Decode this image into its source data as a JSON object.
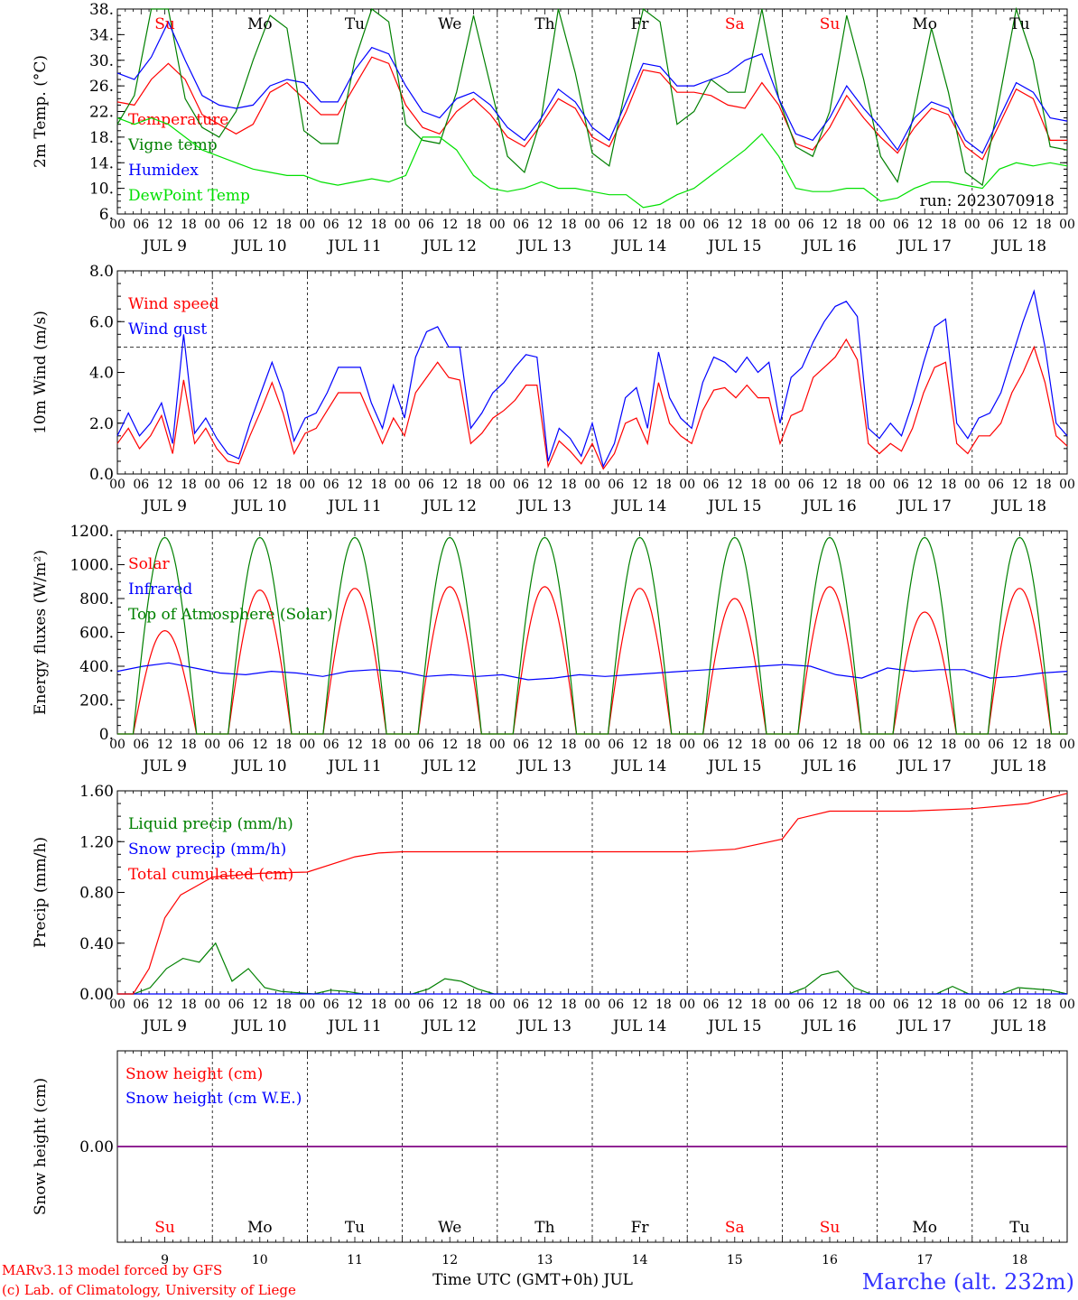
{
  "run_label": "run: 2023070918",
  "footer": {
    "model": "MARv3.13 model forced by GFS",
    "lab": "(c) Lab. of Climatology, University of Liege",
    "xlabel": "Time UTC (GMT+0h) JUL",
    "station": "Marche (alt. 232m)"
  },
  "colors": {
    "red": "#ff0000",
    "darkgreen": "#008000",
    "blue": "#0000ff",
    "lightgreen": "#00e000",
    "purple": "#800080"
  },
  "chart_data": [
    {
      "type": "line",
      "ylabel": "2m Temp. (°C)",
      "ylim": [
        6,
        38
      ],
      "ytick_labels": [
        "6.",
        "10.",
        "14.",
        "18.",
        "22.",
        "26.",
        "30.",
        "34.",
        "38."
      ],
      "xlim_hours": [
        0,
        240
      ],
      "x_hour_labels": [
        "00",
        "06",
        "12",
        "18"
      ],
      "day_labels": [
        "JUL 9",
        "JUL 10",
        "JUL 11",
        "JUL 12",
        "JUL 13",
        "JUL 14",
        "JUL 15",
        "JUL 16",
        "JUL 17",
        "JUL 18"
      ],
      "weekdays": [
        "Su",
        "Mo",
        "Tu",
        "We",
        "Th",
        "Fr",
        "Sa",
        "Su",
        "Mo",
        "Tu"
      ],
      "weekend_flags": [
        true,
        false,
        false,
        false,
        false,
        false,
        true,
        true,
        false,
        false
      ],
      "legend_position": "left",
      "series": [
        {
          "name": "Temperature",
          "color": "#ff0000",
          "values": [
            23.5,
            23,
            27,
            29.5,
            27,
            21.5,
            20,
            18.5,
            20,
            25,
            26.5,
            24,
            21.5,
            21.5,
            26,
            30.5,
            29.5,
            23,
            19.5,
            18.5,
            22,
            24,
            21.5,
            18,
            16.5,
            20,
            24,
            22.5,
            18,
            16.5,
            22,
            28.5,
            28,
            25,
            25,
            24.5,
            23,
            22.5,
            26.5,
            23,
            17,
            16,
            19.5,
            24.5,
            21,
            18,
            15.5,
            19.5,
            22.5,
            21.5,
            16.5,
            14.5,
            20,
            25.5,
            24,
            17.5,
            17.5
          ]
        },
        {
          "name": "Vigne temp",
          "color": "#008000",
          "values": [
            20,
            24.5,
            38,
            38,
            24,
            19.5,
            18,
            22,
            30,
            37,
            35,
            19,
            17,
            17,
            30,
            38,
            36,
            20,
            17.5,
            17,
            25,
            37,
            26,
            15,
            12.5,
            21,
            38,
            28,
            15.5,
            13.5,
            26,
            38,
            36,
            20,
            22,
            27,
            25,
            25,
            38,
            24,
            16.5,
            15,
            22,
            37,
            27,
            15,
            11,
            22,
            35,
            25,
            12.5,
            10.5,
            24,
            38,
            30,
            16.5,
            16
          ]
        },
        {
          "name": "Humidex",
          "color": "#0000ff",
          "values": [
            28,
            27,
            30.5,
            36,
            30,
            24.5,
            23,
            22.5,
            23,
            26,
            27,
            26.5,
            23.5,
            23.5,
            28.5,
            32,
            31,
            26,
            22,
            21,
            24,
            25,
            23,
            19.5,
            17.5,
            21,
            25.5,
            23.5,
            19.5,
            17.5,
            23.5,
            29.5,
            29,
            26,
            26,
            27,
            28,
            30,
            31,
            24,
            18.5,
            17.5,
            21,
            26,
            22.5,
            19.5,
            16,
            21,
            23.5,
            22.5,
            17.5,
            15.5,
            21,
            26.5,
            25,
            21,
            20.5
          ]
        },
        {
          "name": "DewPoint Temp",
          "color": "#00e000",
          "values": [
            21,
            20,
            21,
            20,
            18,
            16,
            15,
            14,
            13,
            12.5,
            12,
            12,
            11,
            10.5,
            11,
            11.5,
            11,
            12,
            18,
            18,
            16,
            12,
            10,
            9.5,
            10,
            11,
            10,
            10,
            9.5,
            9,
            9,
            7,
            7.5,
            9,
            10,
            12,
            14,
            16,
            18.5,
            15,
            10,
            9.5,
            9.5,
            10,
            10,
            8,
            8.5,
            10,
            11,
            11,
            10.5,
            10,
            13,
            14,
            13.5,
            14,
            13.5
          ]
        }
      ],
      "x_step_hours": 4.2857
    },
    {
      "type": "line",
      "ylabel": "10m Wind (m/s)",
      "ylim": [
        0,
        8
      ],
      "ytick_labels": [
        "0.0",
        "2.0",
        "4.0",
        "6.0",
        "8.0"
      ],
      "reference_line": 5,
      "legend_position": "left",
      "series": [
        {
          "name": "Wind speed",
          "color": "#ff0000",
          "values": [
            1.2,
            1.8,
            1.0,
            1.5,
            2.3,
            0.8,
            3.7,
            1.2,
            1.8,
            1.0,
            0.5,
            0.4,
            1.5,
            2.5,
            3.6,
            2.4,
            0.8,
            1.6,
            1.8,
            2.5,
            3.2,
            3.2,
            3.2,
            2.2,
            1.2,
            2.2,
            1.5,
            3.2,
            3.8,
            4.4,
            3.8,
            3.7,
            1.2,
            1.6,
            2.2,
            2.5,
            2.9,
            3.5,
            3.5,
            0.3,
            1.3,
            0.9,
            0.4,
            1.2,
            0.2,
            0.8,
            2.0,
            2.2,
            1.2,
            3.6,
            2.0,
            1.5,
            1.2,
            2.5,
            3.3,
            3.4,
            3.0,
            3.5,
            3.0,
            3.0,
            1.2,
            2.3,
            2.5,
            3.8,
            4.2,
            4.6,
            5.3,
            4.5,
            1.2,
            0.8,
            1.2,
            0.9,
            1.8,
            3.2,
            4.2,
            4.4,
            1.2,
            0.8,
            1.5,
            1.5,
            2.0,
            3.2,
            4.0,
            5.0,
            3.6,
            1.5,
            1.1
          ]
        },
        {
          "name": "Wind gust",
          "color": "#0000ff",
          "values": [
            1.5,
            2.4,
            1.5,
            2.0,
            2.8,
            1.2,
            5.5,
            1.6,
            2.2,
            1.4,
            0.8,
            0.6,
            2.0,
            3.2,
            4.4,
            3.2,
            1.3,
            2.2,
            2.4,
            3.2,
            4.2,
            4.2,
            4.2,
            2.8,
            1.8,
            3.5,
            2.2,
            4.6,
            5.6,
            5.8,
            5.0,
            5.0,
            1.8,
            2.4,
            3.2,
            3.6,
            4.2,
            4.7,
            4.6,
            0.5,
            1.8,
            1.4,
            0.7,
            2.0,
            0.3,
            1.2,
            3.0,
            3.4,
            1.8,
            4.8,
            3.0,
            2.2,
            1.8,
            3.6,
            4.6,
            4.4,
            4.0,
            4.6,
            4.0,
            4.4,
            2.0,
            3.8,
            4.2,
            5.2,
            6.0,
            6.6,
            6.8,
            6.2,
            1.8,
            1.4,
            2.0,
            1.5,
            2.8,
            4.4,
            5.8,
            6.1,
            2.0,
            1.4,
            2.2,
            2.4,
            3.2,
            4.6,
            6.0,
            7.2,
            5.0,
            2.0,
            1.5
          ]
        }
      ],
      "x_step_hours": 2.7907
    },
    {
      "type": "line",
      "ylabel": "Energy fluxes (W/m²)",
      "ylim": [
        0,
        1200
      ],
      "ytick_labels": [
        "0.",
        "200.",
        "400.",
        "600.",
        "800.",
        "1000.",
        "1200."
      ],
      "legend_position": "left",
      "series": [
        {
          "name": "Solar",
          "color": "#ff0000",
          "daily_peak": [
            610,
            850,
            860,
            870,
            870,
            860,
            800,
            870,
            720,
            860
          ]
        },
        {
          "name": "Infrared",
          "color": "#0000ff",
          "values": [
            370,
            400,
            420,
            390,
            360,
            350,
            370,
            360,
            340,
            370,
            380,
            370,
            340,
            350,
            340,
            350,
            320,
            330,
            350,
            340,
            350,
            360,
            370,
            380,
            390,
            400,
            410,
            400,
            350,
            330,
            390,
            370,
            380,
            380,
            330,
            340,
            360,
            370
          ]
        },
        {
          "name": "Top of Atmosphere (Solar)",
          "color": "#008000",
          "daily_peak": [
            1160,
            1160,
            1160,
            1160,
            1160,
            1160,
            1160,
            1160,
            1160,
            1160
          ]
        }
      ],
      "daylight_hours": [
        4,
        20
      ],
      "x_step_hours": 6.3158
    },
    {
      "type": "line",
      "ylabel": "Precip (mm/h)",
      "ylim": [
        0,
        1.6
      ],
      "ytick_labels": [
        "0.00",
        "0.40",
        "0.80",
        "1.20",
        "1.60"
      ],
      "legend_position": "left",
      "series": [
        {
          "name": "Liquid precip (mm/h)",
          "color": "#008000",
          "values": [
            0,
            0,
            0.05,
            0.2,
            0.28,
            0.25,
            0.4,
            0.1,
            0.2,
            0.05,
            0.02,
            0.01,
            0,
            0.03,
            0.02,
            0,
            0,
            0,
            0,
            0.04,
            0.12,
            0.1,
            0.04,
            0,
            0,
            0,
            0,
            0,
            0,
            0,
            0,
            0,
            0,
            0,
            0,
            0,
            0,
            0,
            0,
            0,
            0,
            0,
            0.05,
            0.15,
            0.18,
            0.05,
            0,
            0,
            0,
            0,
            0,
            0.06,
            0,
            0,
            0,
            0.05,
            0.04,
            0.03,
            0
          ]
        },
        {
          "name": "Snow precip (mm/h)",
          "color": "#0000ff",
          "values": [
            0,
            0
          ]
        },
        {
          "name": "Total cumulated (cm)",
          "color": "#ff0000",
          "x_hours": [
            0,
            4,
            8,
            12,
            16,
            20,
            24,
            36,
            48,
            60,
            66,
            72,
            96,
            120,
            144,
            156,
            168,
            172,
            180,
            200,
            216,
            230,
            240
          ],
          "values": [
            0,
            0,
            0.2,
            0.6,
            0.78,
            0.85,
            0.92,
            0.95,
            0.96,
            1.08,
            1.11,
            1.12,
            1.12,
            1.12,
            1.12,
            1.14,
            1.22,
            1.38,
            1.44,
            1.44,
            1.46,
            1.5,
            1.58
          ]
        }
      ],
      "x_step_hours": 4.1379
    },
    {
      "type": "line",
      "ylabel": "Snow height (cm)",
      "ylim": [
        -1,
        1
      ],
      "ytick_labels": [
        "0.00"
      ],
      "legend_position": "left",
      "series": [
        {
          "name": "Snow height (cm)",
          "color": "#ff0000",
          "values": [
            0,
            0
          ]
        },
        {
          "name": "Snow height (cm W.E.)",
          "color": "#0000ff",
          "values": [
            0,
            0
          ]
        }
      ],
      "day_numbers": [
        "9",
        "10",
        "11",
        "12",
        "13",
        "14",
        "15",
        "16",
        "17",
        "18"
      ]
    }
  ]
}
